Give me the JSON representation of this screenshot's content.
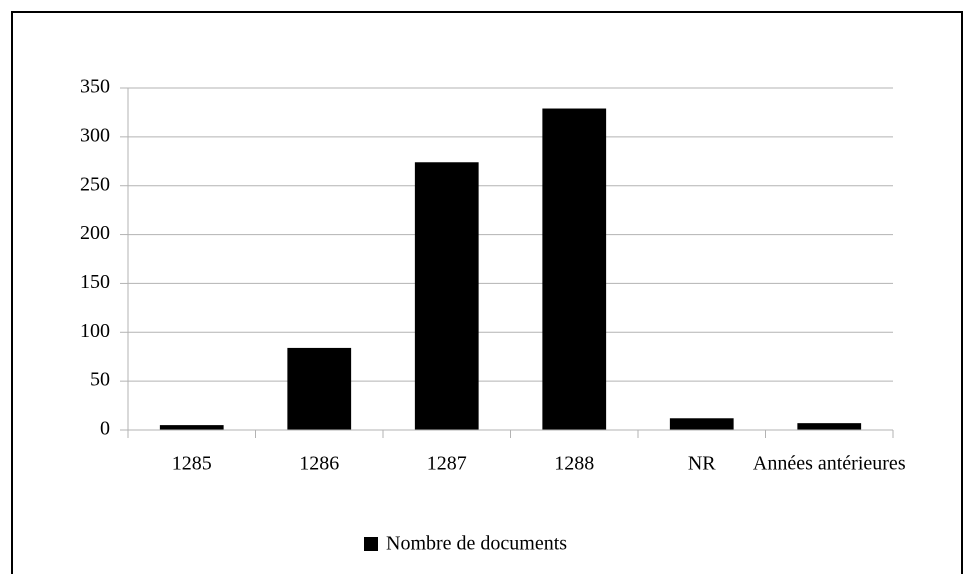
{
  "chart_data": {
    "type": "bar",
    "series": [
      {
        "name": "Nombre de documents",
        "color": "#000000",
        "values": [
          5,
          84,
          274,
          329,
          12,
          7
        ]
      }
    ],
    "categories": [
      "1285",
      "1286",
      "1287",
      "1288",
      "NR",
      "Années antérieures"
    ],
    "ylim": [
      0,
      350
    ],
    "yticks": [
      0,
      50,
      100,
      150,
      200,
      250,
      300,
      350
    ],
    "grid": true,
    "legend": "bottom"
  }
}
